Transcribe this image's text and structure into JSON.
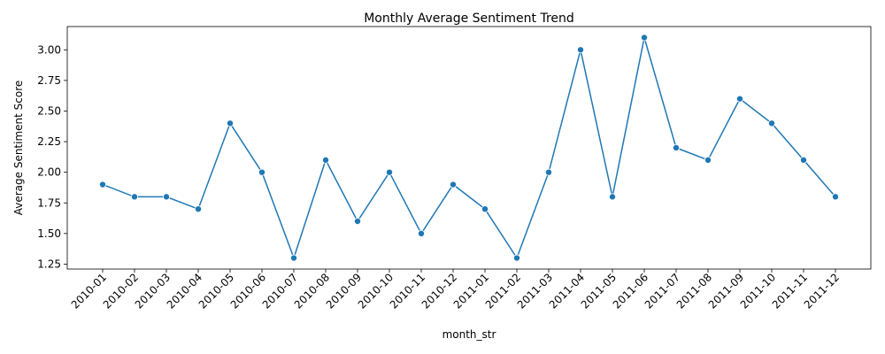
{
  "chart_data": {
    "type": "line",
    "title": "Monthly Average Sentiment Trend",
    "xlabel": "month_str",
    "ylabel": "Average Sentiment Score",
    "x": [
      "2010-01",
      "2010-02",
      "2010-03",
      "2010-04",
      "2010-05",
      "2010-06",
      "2010-07",
      "2010-08",
      "2010-09",
      "2010-10",
      "2010-11",
      "2010-12",
      "2011-01",
      "2011-02",
      "2011-03",
      "2011-04",
      "2011-05",
      "2011-06",
      "2011-07",
      "2011-08",
      "2011-09",
      "2011-10",
      "2011-11",
      "2011-12"
    ],
    "series": [
      {
        "values": [
          1.9,
          1.8,
          1.8,
          1.7,
          2.4,
          2.0,
          1.3,
          2.1,
          1.6,
          2.0,
          1.5,
          1.9,
          1.7,
          1.3,
          2.0,
          3.0,
          1.8,
          3.1,
          2.2,
          2.1,
          2.6,
          2.4,
          2.1,
          1.8
        ],
        "color": "#1f77b4"
      }
    ],
    "ylim": [
      1.21,
      3.19
    ],
    "yticks": [
      1.25,
      1.5,
      1.75,
      2.0,
      2.25,
      2.5,
      2.75,
      3.0
    ],
    "ytick_labels": [
      "1.25",
      "1.50",
      "1.75",
      "2.00",
      "2.25",
      "2.50",
      "2.75",
      "3.00"
    ],
    "grid": false,
    "legend": "none"
  }
}
